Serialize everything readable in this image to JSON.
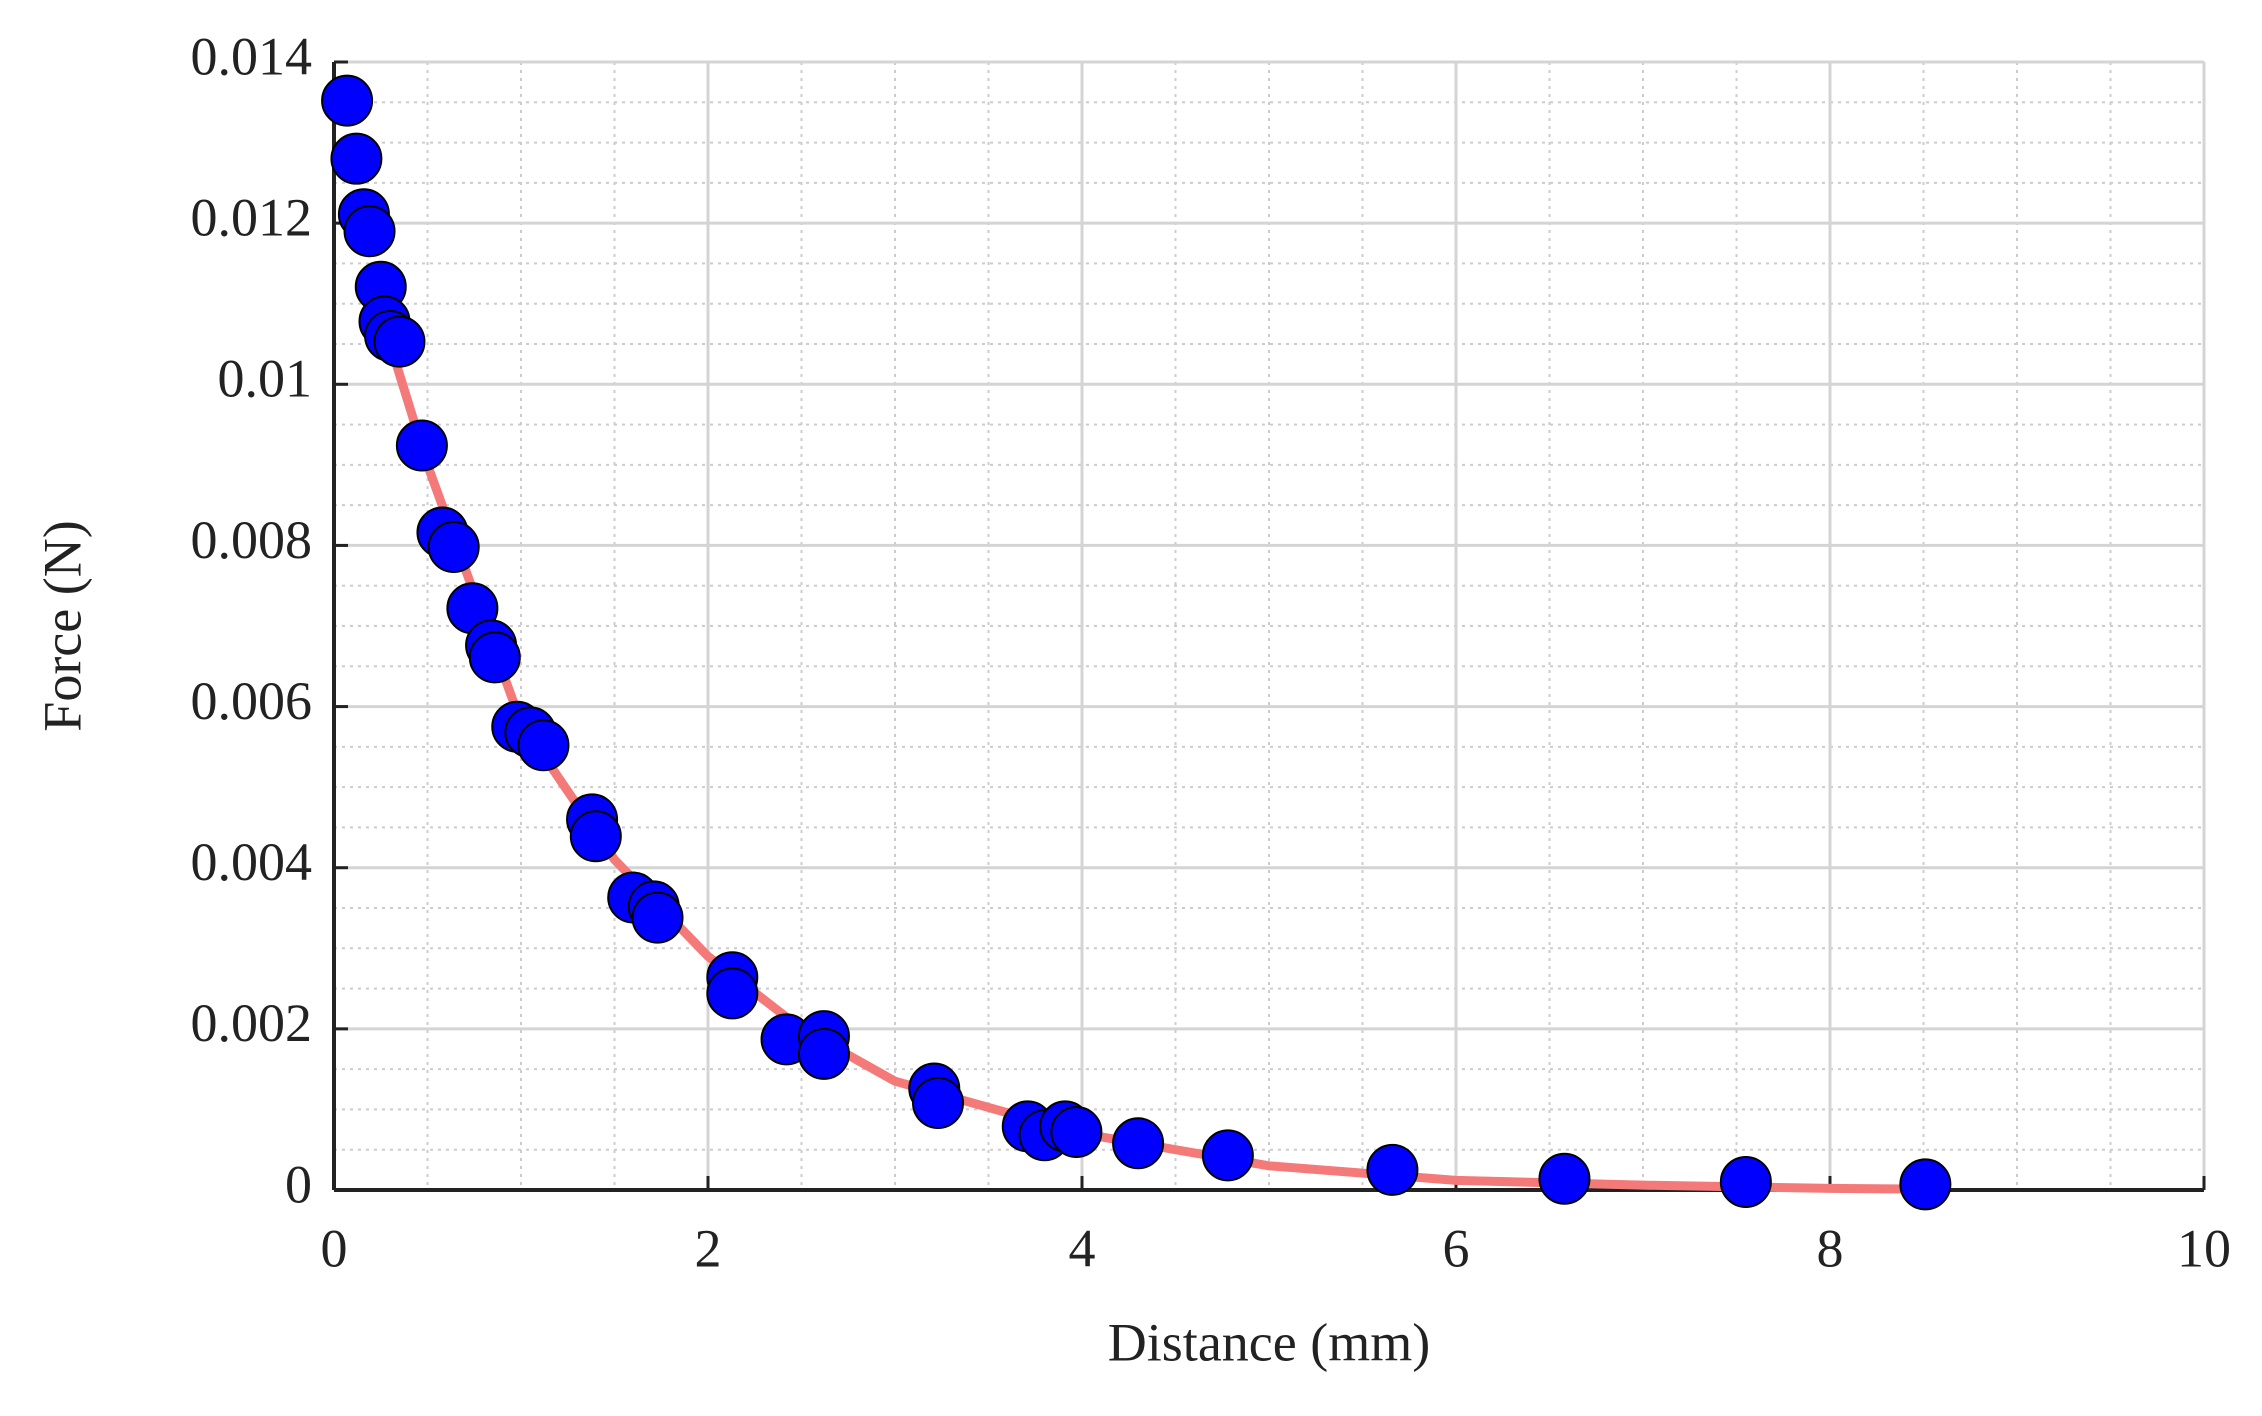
{
  "chart_data": {
    "type": "scatter",
    "xlabel": "Distance (mm)",
    "ylabel": "Force (N)",
    "xlim": [
      0,
      10
    ],
    "xticks": [
      0,
      2,
      4,
      6,
      8,
      10
    ],
    "ylim": [
      0,
      0.014
    ],
    "yticks": [
      0,
      0.002,
      0.004,
      0.006,
      0.008,
      0.01,
      0.012,
      0.014
    ],
    "grid": true,
    "minor_grid": true,
    "series": [
      {
        "type": "line",
        "color": "#f47a7a",
        "x": [
          0.3,
          0.5,
          1,
          1.5,
          2,
          2.5,
          3,
          4,
          5,
          6,
          7,
          8,
          8.5
        ],
        "values": [
          0.0105,
          0.009,
          0.0058,
          0.0041,
          0.0029,
          0.002,
          0.00135,
          0.0007,
          0.0003,
          0.00012,
          6e-05,
          2e-05,
          1e-05
        ]
      },
      {
        "type": "scatter",
        "color": "#0000ff",
        "x": [
          0.07,
          0.12,
          0.16,
          0.19,
          0.25,
          0.27,
          0.3,
          0.35,
          0.47,
          0.58,
          0.64,
          0.74,
          0.84,
          0.86,
          0.98,
          1.05,
          1.12,
          1.38,
          1.4,
          1.6,
          1.71,
          1.73,
          2.13,
          2.13,
          2.42,
          2.62,
          2.62,
          3.21,
          3.23,
          3.71,
          3.8,
          3.91,
          3.97,
          4.3,
          4.78,
          5.66,
          6.58,
          7.55,
          8.51
        ],
        "values": [
          0.01352,
          0.0128,
          0.01211,
          0.0119,
          0.01121,
          0.01078,
          0.0106,
          0.01053,
          0.00924,
          0.00816,
          0.00798,
          0.00722,
          0.00676,
          0.00661,
          0.00575,
          0.00568,
          0.00552,
          0.0046,
          0.00439,
          0.00363,
          0.00352,
          0.00338,
          0.00264,
          0.00244,
          0.00187,
          0.00191,
          0.00169,
          0.00126,
          0.00108,
          0.00079,
          0.00068,
          0.00079,
          0.00072,
          0.00058,
          0.00043,
          0.00025,
          0.00014,
          0.0001,
          7e-05
        ]
      }
    ]
  }
}
